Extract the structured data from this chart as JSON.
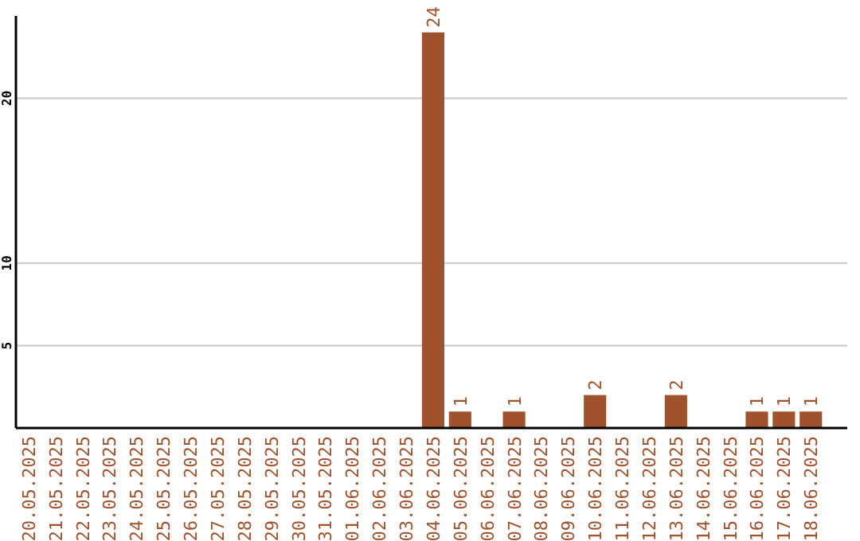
{
  "chart_data": {
    "type": "bar",
    "categories": [
      "20.05.2025",
      "21.05.2025",
      "22.05.2025",
      "23.05.2025",
      "24.05.2025",
      "25.05.2025",
      "26.05.2025",
      "27.05.2025",
      "28.05.2025",
      "29.05.2025",
      "30.05.2025",
      "31.05.2025",
      "01.06.2025",
      "02.06.2025",
      "03.06.2025",
      "04.06.2025",
      "05.06.2025",
      "06.06.2025",
      "07.06.2025",
      "08.06.2025",
      "09.06.2025",
      "10.06.2025",
      "11.06.2025",
      "12.06.2025",
      "13.06.2025",
      "14.06.2025",
      "15.06.2025",
      "16.06.2025",
      "17.06.2025",
      "18.06.2025"
    ],
    "values": [
      0,
      0,
      0,
      0,
      0,
      0,
      0,
      0,
      0,
      0,
      0,
      0,
      0,
      0,
      0,
      24,
      1,
      0,
      1,
      0,
      0,
      2,
      0,
      0,
      2,
      0,
      0,
      1,
      1,
      1
    ],
    "value_labels": [
      null,
      null,
      null,
      null,
      null,
      null,
      null,
      null,
      null,
      null,
      null,
      null,
      null,
      null,
      null,
      "24",
      "1",
      null,
      "1",
      null,
      null,
      "2",
      null,
      null,
      "2",
      null,
      null,
      "1",
      "1",
      "1"
    ],
    "color": "#a0522d",
    "ylim": [
      0,
      25
    ],
    "yticks": [
      5,
      10,
      20
    ],
    "grid": "y"
  }
}
